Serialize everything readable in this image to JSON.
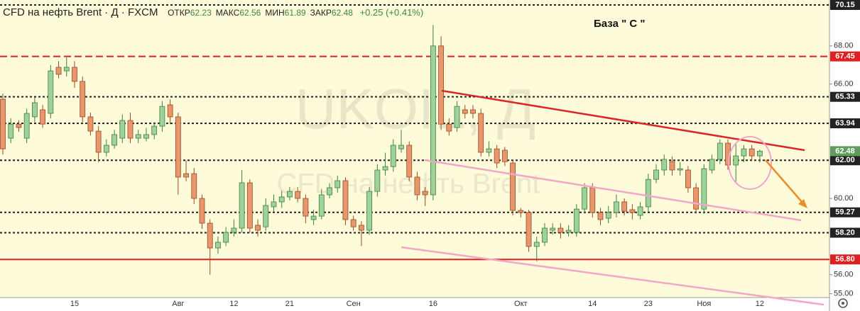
{
  "chart_data": {
    "type": "candlestick",
    "title": "CFD на нефть Brent · Д · FXCM",
    "ohlc_header": [
      {
        "label": "ОТКР",
        "value": 62.23
      },
      {
        "label": "МАКС",
        "value": 62.56
      },
      {
        "label": "МИН",
        "value": 61.89
      },
      {
        "label": "ЗАКР",
        "value": 62.48
      }
    ],
    "change": "+0.25 (+0.41%)",
    "annotation": "База  \" С \"",
    "watermark": [
      "UKOIL, Д",
      "CFD на нефть Brent"
    ],
    "categories": [
      null,
      null,
      null,
      null,
      null,
      null,
      null,
      null,
      null,
      "15",
      null,
      null,
      null,
      null,
      null,
      null,
      null,
      null,
      null,
      null,
      null,
      null,
      "Авг",
      null,
      null,
      null,
      null,
      null,
      null,
      "12",
      null,
      null,
      null,
      null,
      null,
      null,
      "21",
      null,
      null,
      null,
      null,
      null,
      null,
      null,
      "Сен",
      null,
      null,
      null,
      null,
      null,
      null,
      null,
      null,
      null,
      "16",
      null,
      null,
      null,
      null,
      null,
      null,
      null,
      null,
      null,
      null,
      "Окт",
      null,
      null,
      null,
      null,
      null,
      null,
      null,
      null,
      "14",
      null,
      null,
      null,
      null,
      null,
      null,
      "23",
      null,
      null,
      null,
      null,
      null,
      null,
      "Ноя",
      null,
      null,
      null,
      null,
      null,
      null,
      "12"
    ],
    "open": [
      65.21,
      63.16,
      63.9,
      63.16,
      64.28,
      64.65,
      64.46,
      66.88,
      66.69,
      66.88,
      66.14,
      64.28,
      63.53,
      62.42,
      62.79,
      63.16,
      64.09,
      63.16,
      63.16,
      63.35,
      63.79,
      64.91,
      64.28,
      61.3,
      61.3,
      60.0,
      58.7,
      57.4,
      57.7,
      58.22,
      58.44,
      60.82,
      58.59,
      58.51,
      59.56,
      59.82,
      60.08,
      60.37,
      60.0,
      58.89,
      59.07,
      60.19,
      60.56,
      60.93,
      58.89,
      58.59,
      58.33,
      60.37,
      61.49,
      61.67,
      62.6,
      62.79,
      61.12,
      60.37,
      60.19,
      68.0,
      63.9,
      63.72,
      64.65,
      64.65,
      64.46,
      62.42,
      62.6,
      62.53,
      61.86,
      59.37,
      59.26,
      57.48,
      57.7,
      58.33,
      58.44,
      58.22,
      58.22,
      59.44,
      60.56,
      59.26,
      58.96,
      59.26,
      59.82,
      59.41,
      59.11,
      59.56,
      61.0,
      61.49,
      61.93,
      61.49,
      61.49,
      60.56,
      59.44,
      61.49,
      62.05,
      62.9,
      61.75,
      62.23,
      62.6,
      62.23
    ],
    "high": [
      65.5,
      64.2,
      64.1,
      64.7,
      65.3,
      64.9,
      67.0,
      67.2,
      67.4,
      67.2,
      66.4,
      64.5,
      63.8,
      63.1,
      63.6,
      64.4,
      64.5,
      63.6,
      63.7,
      64.0,
      65.1,
      65.2,
      64.5,
      62.0,
      61.6,
      60.2,
      58.9,
      58.0,
      58.5,
      58.9,
      61.5,
      61.0,
      58.9,
      60.0,
      60.2,
      60.4,
      60.6,
      60.6,
      60.2,
      59.4,
      60.5,
      60.8,
      61.2,
      61.1,
      59.1,
      58.8,
      60.6,
      61.8,
      62.4,
      63.1,
      63.6,
      63.0,
      61.4,
      60.6,
      69.1,
      68.5,
      64.2,
      65.1,
      64.9,
      64.9,
      64.7,
      63.0,
      62.8,
      62.7,
      62.0,
      59.5,
      59.4,
      58.0,
      58.7,
      58.7,
      58.7,
      58.6,
      59.7,
      60.8,
      60.8,
      59.5,
      59.6,
      60.2,
      60.0,
      59.7,
      59.8,
      61.3,
      61.8,
      62.3,
      62.2,
      61.9,
      61.7,
      60.8,
      61.8,
      62.3,
      63.1,
      63.1,
      62.9,
      62.8,
      62.8,
      62.56
    ],
    "low": [
      62.3,
      62.9,
      63.5,
      62.9,
      64.0,
      63.7,
      64.2,
      66.3,
      66.4,
      65.8,
      64.0,
      63.3,
      61.9,
      62.2,
      62.6,
      62.9,
      62.9,
      62.9,
      63.0,
      63.1,
      63.5,
      63.9,
      60.2,
      60.9,
      59.7,
      58.4,
      56.0,
      57.1,
      57.5,
      58.0,
      58.2,
      58.2,
      58.0,
      58.3,
      59.3,
      59.5,
      59.9,
      59.8,
      58.7,
      58.6,
      58.9,
      60.0,
      60.3,
      58.6,
      58.3,
      57.5,
      58.1,
      60.1,
      61.2,
      61.4,
      62.4,
      60.9,
      59.9,
      59.6,
      59.9,
      63.6,
      63.3,
      63.5,
      64.2,
      64.2,
      62.2,
      62.2,
      61.6,
      61.7,
      59.1,
      59.0,
      57.2,
      56.7,
      57.5,
      58.1,
      57.9,
      58.0,
      58.0,
      59.2,
      59.0,
      58.6,
      58.7,
      59.0,
      59.1,
      58.9,
      58.9,
      59.3,
      60.8,
      61.2,
      61.2,
      61.2,
      60.3,
      59.2,
      59.2,
      61.3,
      61.8,
      61.5,
      60.8,
      61.9,
      62.0,
      61.89
    ],
    "close": [
      62.6,
      63.9,
      63.72,
      64.46,
      65.02,
      63.9,
      66.69,
      66.51,
      66.88,
      66.14,
      64.28,
      63.53,
      62.42,
      62.79,
      63.35,
      64.09,
      63.16,
      63.35,
      63.35,
      63.79,
      64.83,
      64.28,
      61.12,
      61.12,
      60.0,
      58.7,
      57.4,
      57.7,
      58.22,
      58.44,
      60.82,
      58.44,
      58.33,
      59.63,
      59.82,
      60.08,
      60.37,
      60.0,
      59.07,
      59.07,
      60.19,
      60.56,
      60.93,
      58.89,
      58.51,
      58.33,
      60.37,
      61.49,
      61.67,
      62.79,
      62.79,
      61.12,
      60.19,
      60.19,
      68.0,
      63.9,
      63.53,
      64.83,
      64.46,
      64.46,
      62.42,
      62.6,
      61.86,
      61.93,
      59.37,
      59.26,
      57.48,
      57.7,
      58.44,
      58.44,
      58.22,
      58.33,
      59.44,
      60.56,
      59.26,
      58.89,
      59.26,
      59.82,
      59.33,
      59.26,
      59.56,
      61.0,
      61.49,
      62.05,
      61.49,
      61.56,
      60.56,
      59.44,
      61.56,
      62.05,
      62.9,
      61.75,
      62.23,
      62.6,
      62.23,
      62.48
    ],
    "up_color": "#9fd19a",
    "up_border": "#3f7f3c",
    "down_color": "#e8976c",
    "down_border": "#9a4a26",
    "ylim": [
      54.8,
      70.41
    ],
    "yticks": [
      {
        "value": 55,
        "label": "55.00"
      },
      {
        "value": 56,
        "label": "56.00"
      },
      {
        "value": 60,
        "label": "60.00"
      },
      {
        "value": 66,
        "label": "66.00"
      },
      {
        "value": 68,
        "label": "68.00"
      }
    ],
    "levels": [
      {
        "value": 70.15,
        "label": "70.15",
        "style": "dashed",
        "color": "#222222"
      },
      {
        "value": 67.45,
        "label": "67.45",
        "style": "dashed",
        "color": "#e02020"
      },
      {
        "value": 65.33,
        "label": "65.33",
        "style": "dashed",
        "color": "#222222"
      },
      {
        "value": 63.94,
        "label": "63.94",
        "style": "dashed",
        "color": "#222222"
      },
      {
        "value": 62.0,
        "label": "62.00",
        "style": "dashed",
        "color": "#222222"
      },
      {
        "value": 59.27,
        "label": "59.27",
        "style": "dashed",
        "color": "#222222"
      },
      {
        "value": 58.2,
        "label": "58.20",
        "style": "dashed",
        "color": "#222222"
      },
      {
        "value": 56.8,
        "label": "56.80",
        "style": "solid",
        "color": "#e02020"
      }
    ],
    "current_price": {
      "value": 62.48,
      "label": "62.48",
      "color": "#5e9e5a"
    }
  }
}
